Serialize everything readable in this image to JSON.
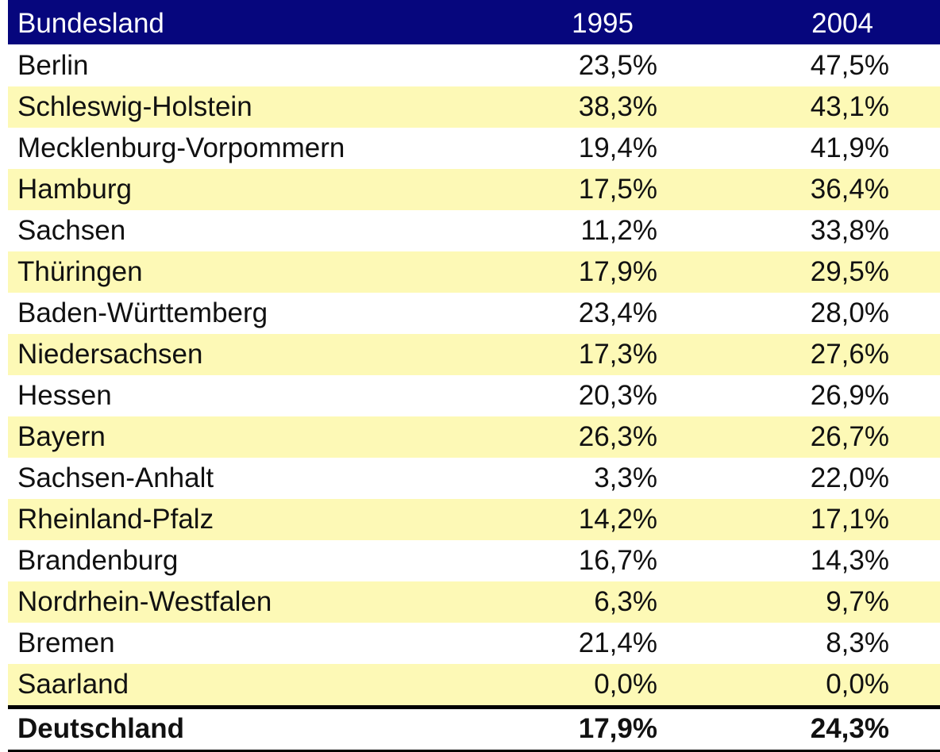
{
  "table": {
    "header": [
      "Bundesland",
      "1995",
      "2004"
    ],
    "rows": [
      [
        "Berlin",
        "23,5%",
        "47,5%"
      ],
      [
        "Schleswig-Holstein",
        "38,3%",
        "43,1%"
      ],
      [
        "Mecklenburg-Vorpommern",
        "19,4%",
        "41,9%"
      ],
      [
        "Hamburg",
        "17,5%",
        "36,4%"
      ],
      [
        "Sachsen",
        "11,2%",
        "33,8%"
      ],
      [
        "Thüringen",
        "17,9%",
        "29,5%"
      ],
      [
        "Baden-Württemberg",
        "23,4%",
        "28,0%"
      ],
      [
        "Niedersachsen",
        "17,3%",
        "27,6%"
      ],
      [
        "Hessen",
        "20,3%",
        "26,9%"
      ],
      [
        "Bayern",
        "26,3%",
        "26,7%"
      ],
      [
        "Sachsen-Anhalt",
        "3,3%",
        "22,0%"
      ],
      [
        "Rheinland-Pfalz",
        "14,2%",
        "17,1%"
      ],
      [
        "Brandenburg",
        "16,7%",
        "14,3%"
      ],
      [
        "Nordrhein-Westfalen",
        "6,3%",
        "9,7%"
      ],
      [
        "Bremen",
        "21,4%",
        "8,3%"
      ],
      [
        "Saarland",
        "0,0%",
        "0,0%"
      ]
    ],
    "total": [
      "Deutschland",
      "17,9%",
      "24,3%"
    ]
  }
}
